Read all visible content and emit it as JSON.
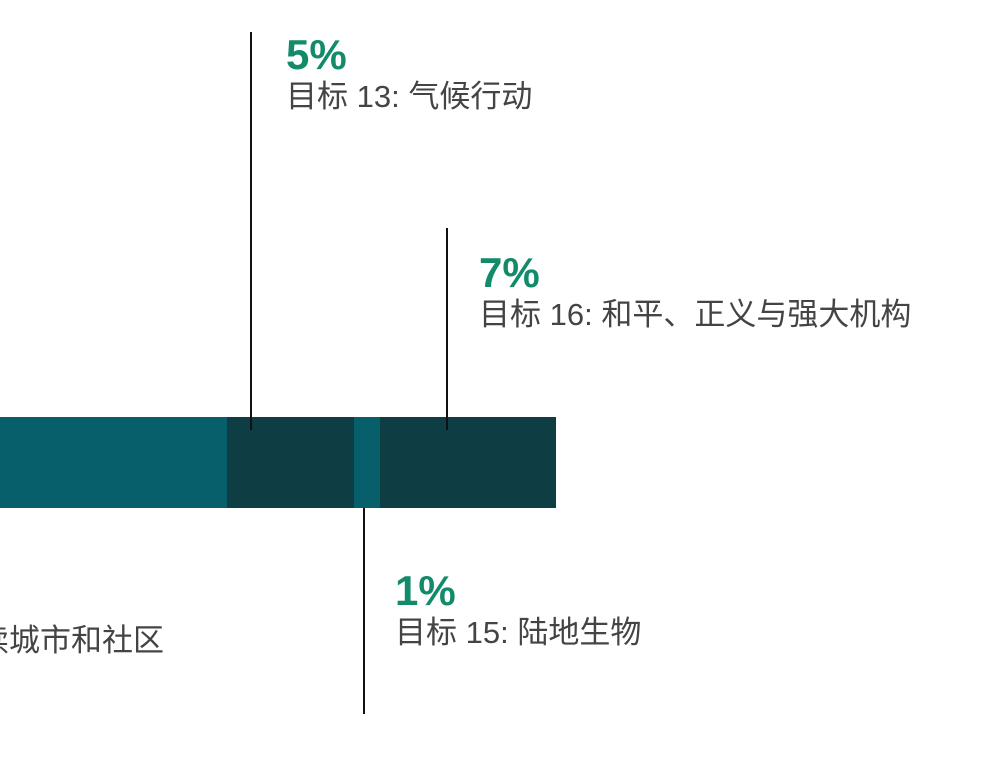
{
  "colors": {
    "teal": "#075f6b",
    "dark_teal": "#0f3d44",
    "label_green": "#138a6a",
    "label_gray": "#444444",
    "leader_line": "#111111"
  },
  "chart_data": {
    "type": "bar",
    "orientation": "horizontal-stacked",
    "grid": false,
    "segments": [
      {
        "label": "续城市和社区",
        "value": null,
        "color": "#075f6b"
      },
      {
        "label": "目标 13: 气候行动",
        "value": 5,
        "value_label": "5%",
        "color": "#0f3d44"
      },
      {
        "label": "目标 15: 陆地生物",
        "value": 1,
        "value_label": "1%",
        "color": "#075f6b"
      },
      {
        "label": "目标 16: 和平、正义与强大机构",
        "value": 7,
        "value_label": "7%",
        "color": "#0f3d44"
      }
    ]
  }
}
